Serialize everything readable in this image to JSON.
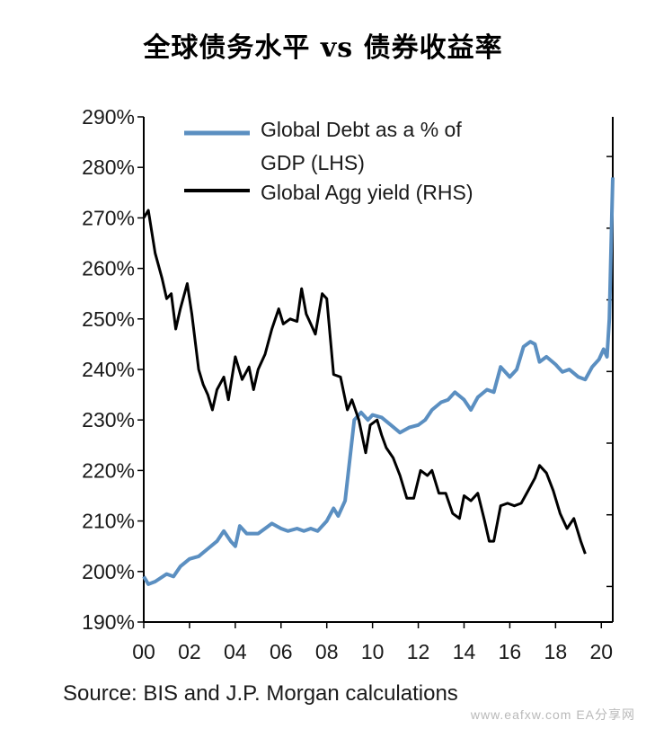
{
  "chart_data": {
    "type": "line",
    "title": "全球债务水平 vs 债券收益率",
    "x_ticks": [
      "00",
      "02",
      "04",
      "06",
      "08",
      "10",
      "12",
      "14",
      "16",
      "18",
      "20"
    ],
    "xlim": [
      2000,
      2020.5
    ],
    "y_ticks_left": [
      "190%",
      "200%",
      "210%",
      "220%",
      "230%",
      "240%",
      "250%",
      "260%",
      "270%",
      "280%",
      "290%"
    ],
    "ylim_left": [
      190,
      290
    ],
    "legend_position": "top",
    "series": [
      {
        "name": "Global Debt as a % of GDP (LHS)",
        "axis": "left",
        "color": "#5b8fc1",
        "points": [
          [
            2000.0,
            199.0
          ],
          [
            2000.2,
            197.5
          ],
          [
            2000.5,
            198.0
          ],
          [
            2001.0,
            199.5
          ],
          [
            2001.3,
            199.0
          ],
          [
            2001.6,
            201.0
          ],
          [
            2002.0,
            202.5
          ],
          [
            2002.4,
            203.0
          ],
          [
            2002.8,
            204.5
          ],
          [
            2003.2,
            206.0
          ],
          [
            2003.5,
            208.0
          ],
          [
            2003.8,
            206.0
          ],
          [
            2004.0,
            205.0
          ],
          [
            2004.2,
            209.0
          ],
          [
            2004.5,
            207.5
          ],
          [
            2005.0,
            207.5
          ],
          [
            2005.3,
            208.5
          ],
          [
            2005.6,
            209.5
          ],
          [
            2006.0,
            208.5
          ],
          [
            2006.3,
            208.0
          ],
          [
            2006.7,
            208.5
          ],
          [
            2007.0,
            208.0
          ],
          [
            2007.3,
            208.5
          ],
          [
            2007.6,
            208.0
          ],
          [
            2008.0,
            210.0
          ],
          [
            2008.3,
            212.5
          ],
          [
            2008.5,
            211.0
          ],
          [
            2008.8,
            214.0
          ],
          [
            2009.0,
            222.0
          ],
          [
            2009.2,
            230.0
          ],
          [
            2009.5,
            231.5
          ],
          [
            2009.8,
            230.0
          ],
          [
            2010.0,
            231.0
          ],
          [
            2010.4,
            230.5
          ],
          [
            2010.8,
            229.0
          ],
          [
            2011.2,
            227.5
          ],
          [
            2011.6,
            228.5
          ],
          [
            2012.0,
            229.0
          ],
          [
            2012.3,
            230.0
          ],
          [
            2012.6,
            232.0
          ],
          [
            2013.0,
            233.5
          ],
          [
            2013.3,
            234.0
          ],
          [
            2013.6,
            235.5
          ],
          [
            2014.0,
            234.0
          ],
          [
            2014.3,
            232.0
          ],
          [
            2014.6,
            234.5
          ],
          [
            2015.0,
            236.0
          ],
          [
            2015.3,
            235.5
          ],
          [
            2015.6,
            240.5
          ],
          [
            2016.0,
            238.5
          ],
          [
            2016.3,
            240.0
          ],
          [
            2016.6,
            244.5
          ],
          [
            2016.9,
            245.5
          ],
          [
            2017.1,
            245.0
          ],
          [
            2017.3,
            241.5
          ],
          [
            2017.6,
            242.5
          ],
          [
            2018.0,
            241.0
          ],
          [
            2018.3,
            239.5
          ],
          [
            2018.6,
            240.0
          ],
          [
            2019.0,
            238.5
          ],
          [
            2019.3,
            238.0
          ],
          [
            2019.6,
            240.5
          ],
          [
            2019.9,
            242.0
          ],
          [
            2020.1,
            244.0
          ],
          [
            2020.25,
            242.5
          ],
          [
            2020.35,
            250.0
          ],
          [
            2020.5,
            278.0
          ]
        ]
      },
      {
        "name": "Global Agg yield (RHS)",
        "axis": "right",
        "color": "#000000",
        "points": [
          [
            2000.0,
            270.0
          ],
          [
            2000.2,
            271.5
          ],
          [
            2000.5,
            263.0
          ],
          [
            2000.8,
            258.0
          ],
          [
            2001.0,
            254.0
          ],
          [
            2001.2,
            255.0
          ],
          [
            2001.4,
            248.0
          ],
          [
            2001.6,
            252.0
          ],
          [
            2001.9,
            257.0
          ],
          [
            2002.1,
            251.0
          ],
          [
            2002.4,
            240.0
          ],
          [
            2002.6,
            237.0
          ],
          [
            2002.8,
            235.0
          ],
          [
            2003.0,
            232.0
          ],
          [
            2003.2,
            236.0
          ],
          [
            2003.5,
            238.5
          ],
          [
            2003.7,
            234.0
          ],
          [
            2004.0,
            242.5
          ],
          [
            2004.3,
            238.0
          ],
          [
            2004.6,
            240.5
          ],
          [
            2004.8,
            236.0
          ],
          [
            2005.0,
            240.0
          ],
          [
            2005.3,
            243.0
          ],
          [
            2005.6,
            248.0
          ],
          [
            2005.9,
            252.0
          ],
          [
            2006.1,
            249.0
          ],
          [
            2006.4,
            250.0
          ],
          [
            2006.7,
            249.5
          ],
          [
            2006.9,
            256.0
          ],
          [
            2007.1,
            251.0
          ],
          [
            2007.3,
            249.0
          ],
          [
            2007.5,
            247.0
          ],
          [
            2007.8,
            255.0
          ],
          [
            2008.0,
            254.0
          ],
          [
            2008.3,
            239.0
          ],
          [
            2008.6,
            238.5
          ],
          [
            2008.9,
            232.0
          ],
          [
            2009.1,
            234.0
          ],
          [
            2009.4,
            230.0
          ],
          [
            2009.7,
            223.5
          ],
          [
            2009.9,
            229.0
          ],
          [
            2010.2,
            230.0
          ],
          [
            2010.4,
            227.0
          ],
          [
            2010.6,
            224.5
          ],
          [
            2010.9,
            222.5
          ],
          [
            2011.2,
            219.0
          ],
          [
            2011.5,
            214.5
          ],
          [
            2011.8,
            214.5
          ],
          [
            2012.1,
            220.0
          ],
          [
            2012.4,
            219.0
          ],
          [
            2012.6,
            220.0
          ],
          [
            2012.9,
            215.5
          ],
          [
            2013.2,
            215.5
          ],
          [
            2013.5,
            211.5
          ],
          [
            2013.8,
            210.5
          ],
          [
            2014.0,
            215.0
          ],
          [
            2014.3,
            214.0
          ],
          [
            2014.6,
            215.5
          ],
          [
            2014.9,
            210.0
          ],
          [
            2015.1,
            206.0
          ],
          [
            2015.3,
            206.0
          ],
          [
            2015.6,
            213.0
          ],
          [
            2015.9,
            213.5
          ],
          [
            2016.2,
            213.0
          ],
          [
            2016.5,
            213.5
          ],
          [
            2016.8,
            216.0
          ],
          [
            2017.1,
            218.5
          ],
          [
            2017.3,
            221.0
          ],
          [
            2017.6,
            219.5
          ],
          [
            2017.9,
            216.0
          ],
          [
            2018.2,
            211.5
          ],
          [
            2018.5,
            208.5
          ],
          [
            2018.8,
            210.5
          ],
          [
            2019.1,
            206.0
          ],
          [
            2019.3,
            203.5
          ]
        ]
      }
    ]
  },
  "source_note": "Source: BIS and J.P. Morgan calculations",
  "watermark": "www.eafxw.com   EA分享网"
}
